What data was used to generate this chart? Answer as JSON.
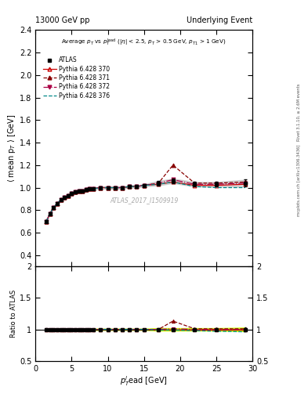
{
  "title_left": "13000 GeV pp",
  "title_right": "Underlying Event",
  "watermark": "ATLAS_2017_I1509919",
  "ylabel_main": "$\\langle$ mean p$_T$ $\\rangle$ [GeV]",
  "ylabel_ratio": "Ratio to ATLAS",
  "xlabel": "$p_T^l$ead [GeV]",
  "right_label_top": "Rivet 3.1.10, ≥ 2.6M events",
  "right_label_bot": "mcplots.cern.ch [arXiv:1306.3436]",
  "ylim_main": [
    0.3,
    2.4
  ],
  "ylim_ratio": [
    0.5,
    2.0
  ],
  "xlim": [
    0,
    30
  ],
  "atlas_x": [
    1.5,
    2.0,
    2.5,
    3.0,
    3.5,
    4.0,
    4.5,
    5.0,
    5.5,
    6.0,
    6.5,
    7.0,
    7.5,
    8.0,
    9.0,
    10.0,
    11.0,
    12.0,
    13.0,
    14.0,
    15.0,
    17.0,
    19.0,
    22.0,
    25.0,
    29.0
  ],
  "atlas_y": [
    0.7,
    0.77,
    0.82,
    0.86,
    0.89,
    0.91,
    0.93,
    0.95,
    0.96,
    0.97,
    0.97,
    0.98,
    0.99,
    0.99,
    1.0,
    1.0,
    1.0,
    1.0,
    1.01,
    1.01,
    1.02,
    1.04,
    1.06,
    1.03,
    1.03,
    1.04
  ],
  "atlas_yerr": [
    0.01,
    0.01,
    0.01,
    0.01,
    0.01,
    0.01,
    0.01,
    0.01,
    0.01,
    0.01,
    0.01,
    0.01,
    0.01,
    0.01,
    0.01,
    0.01,
    0.01,
    0.01,
    0.01,
    0.01,
    0.01,
    0.02,
    0.02,
    0.02,
    0.02,
    0.03
  ],
  "p370_y": [
    0.7,
    0.77,
    0.82,
    0.86,
    0.89,
    0.91,
    0.93,
    0.95,
    0.96,
    0.97,
    0.97,
    0.98,
    0.99,
    0.99,
    1.0,
    1.0,
    1.0,
    1.0,
    1.01,
    1.01,
    1.02,
    1.03,
    1.05,
    1.02,
    1.02,
    1.03
  ],
  "p371_y": [
    0.7,
    0.77,
    0.82,
    0.86,
    0.89,
    0.91,
    0.93,
    0.95,
    0.96,
    0.97,
    0.97,
    0.98,
    0.99,
    0.99,
    1.0,
    1.0,
    1.0,
    1.0,
    1.01,
    1.01,
    1.02,
    1.04,
    1.2,
    1.04,
    1.04,
    1.05
  ],
  "p372_y": [
    0.7,
    0.77,
    0.82,
    0.86,
    0.89,
    0.91,
    0.93,
    0.95,
    0.96,
    0.97,
    0.97,
    0.98,
    0.99,
    0.99,
    1.0,
    1.0,
    1.0,
    1.0,
    1.01,
    1.01,
    1.02,
    1.04,
    1.07,
    1.03,
    1.03,
    1.04
  ],
  "p376_y": [
    0.7,
    0.77,
    0.82,
    0.86,
    0.89,
    0.91,
    0.93,
    0.95,
    0.96,
    0.97,
    0.97,
    0.98,
    0.99,
    0.99,
    1.0,
    1.0,
    1.0,
    1.0,
    1.01,
    1.01,
    1.02,
    1.03,
    1.05,
    1.01,
    1.0,
    1.0
  ],
  "color_370": "#cc0000",
  "color_371": "#880000",
  "color_372": "#aa0044",
  "color_376": "#008888",
  "ratio_band_color": "#ccff00",
  "ls_370": "-",
  "ls_371": "--",
  "ls_372": "-.",
  "ls_376": "--"
}
